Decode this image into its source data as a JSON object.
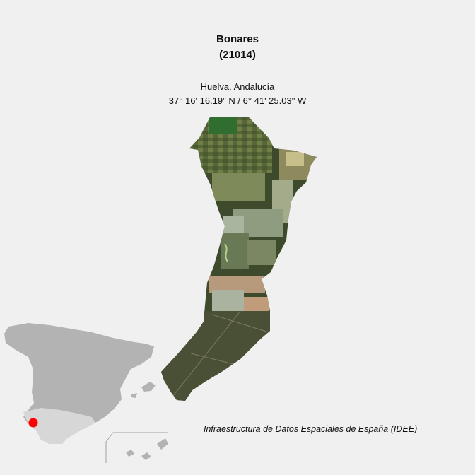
{
  "header": {
    "name": "Bonares",
    "code": "(21014)"
  },
  "location": {
    "region": "Huelva, Andalucía",
    "coordinates": "37° 16' 16.19\" N / 6° 41' 25.03\" W"
  },
  "credit": "Infraestructura de Datos Espaciales de España (IDEE)",
  "colors": {
    "background": "#f0f0f0",
    "country_fill": "#b3b3b3",
    "marker": "#ff0000",
    "terrain_dark": "#3e4a2c",
    "terrain_field": "#9aa67a"
  }
}
